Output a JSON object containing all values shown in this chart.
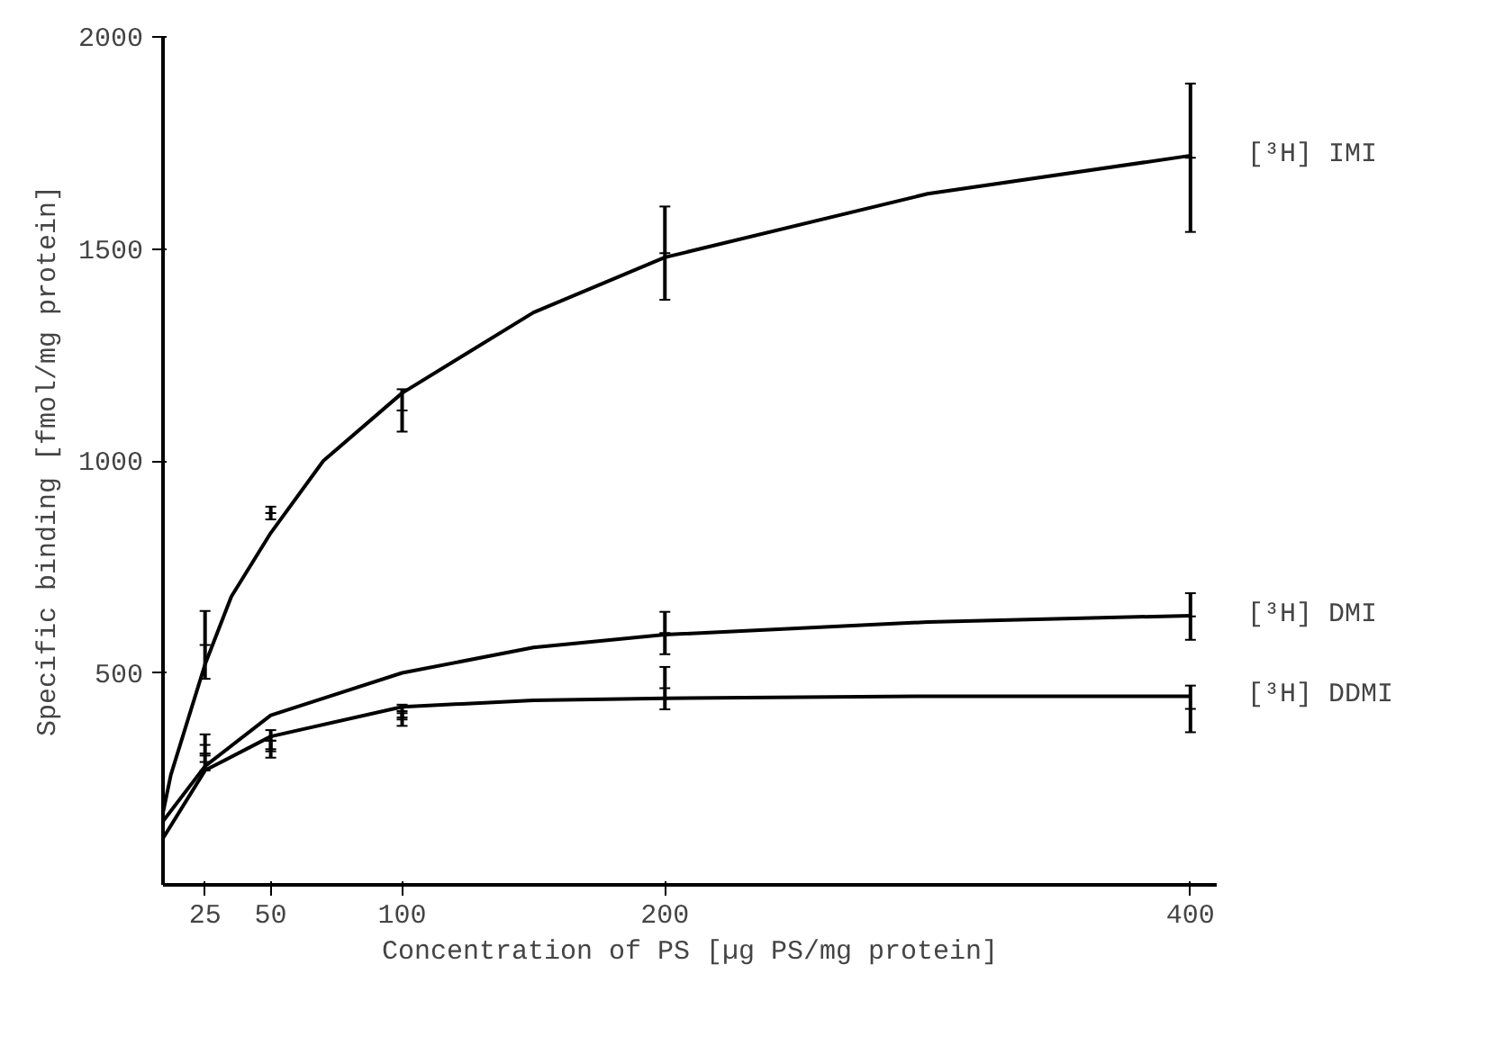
{
  "chart_data": {
    "type": "line",
    "xlabel": "Concentration of PS [µg PS/mg protein]",
    "ylabel": "Specific binding [fmol/mg protein]",
    "xlim": [
      9,
      410
    ],
    "ylim": [
      0,
      2000
    ],
    "xticks": [
      25,
      50,
      100,
      200,
      400
    ],
    "yticks": [
      500,
      1000,
      1500,
      2000
    ],
    "grid": false,
    "marker": "none",
    "line_style": "solid",
    "series": [
      {
        "name": "[³H] IMI",
        "color": "#000000",
        "x": [
          9,
          12,
          20,
          25,
          35,
          50,
          70,
          100,
          150,
          200,
          300,
          400
        ],
        "values": [
          170,
          260,
          420,
          520,
          680,
          830,
          1000,
          1160,
          1350,
          1480,
          1630,
          1720
        ]
      },
      {
        "name": "[³H] DMI",
        "color": "#000000",
        "x": [
          9,
          25,
          50,
          100,
          150,
          200,
          300,
          400
        ],
        "values": [
          150,
          280,
          400,
          500,
          560,
          590,
          620,
          635
        ]
      },
      {
        "name": "[³H] DDMI",
        "color": "#000000",
        "x": [
          9,
          25,
          50,
          100,
          150,
          200,
          300,
          400
        ],
        "values": [
          110,
          270,
          350,
          420,
          435,
          440,
          445,
          445
        ]
      },
      {
        "type": "scatter",
        "marker": "cross",
        "color": "#000000",
        "x": [
          25,
          50,
          100,
          200,
          400
        ],
        "values": [
          566,
          877,
          1119,
          1490,
          1715
        ],
        "errors": [
          80,
          15,
          50,
          110,
          175
        ]
      },
      {
        "type": "scatter",
        "marker": "cross",
        "color": "#000000",
        "x": [
          25,
          50,
          100,
          200,
          400
        ],
        "values": [
          330,
          340,
          410,
          594,
          633
        ],
        "errors": [
          25,
          25,
          15,
          50,
          55
        ]
      },
      {
        "type": "scatter",
        "marker": "cross",
        "color": "#000000",
        "x": [
          25,
          50,
          100,
          200,
          400
        ],
        "values": [
          290,
          320,
          390,
          464,
          415
        ],
        "errors": [
          20,
          20,
          15,
          50,
          55
        ]
      }
    ]
  }
}
